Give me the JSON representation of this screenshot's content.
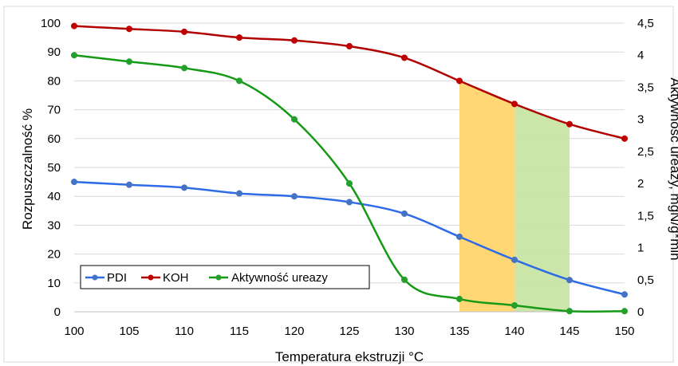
{
  "chart_data": {
    "type": "line",
    "xlabel": "Temperatura ekstruzji °C",
    "ylabel": "Rozpuszczalność %",
    "y2label": "Aktywność ureazy, mgN/g*min",
    "x": [
      100,
      105,
      110,
      115,
      120,
      125,
      130,
      135,
      140,
      145,
      150
    ],
    "x_tick_labels": [
      "100",
      "105",
      "110",
      "115",
      "120",
      "125",
      "130",
      "135",
      "140",
      "145",
      "150"
    ],
    "ylim": [
      0,
      100
    ],
    "y_tick_labels": [
      "0",
      "10",
      "20",
      "30",
      "40",
      "50",
      "60",
      "70",
      "80",
      "90",
      "100"
    ],
    "y2lim": [
      0,
      4.5
    ],
    "y2_tick_labels": [
      "0",
      "0,5",
      "1",
      "1,5",
      "2",
      "2,5",
      "3",
      "3,5",
      "4",
      "4,5"
    ],
    "grid": true,
    "legend": "bottom-left",
    "series": [
      {
        "name": "PDI",
        "axis": "left",
        "color": "#4472C4",
        "line_color": "#2E6BE6",
        "values": [
          45,
          44,
          43,
          41,
          40,
          38,
          34,
          26,
          18,
          11,
          6
        ]
      },
      {
        "name": "KOH",
        "axis": "left",
        "color": "#C00000",
        "line_color": "#B00000",
        "values": [
          99,
          98,
          97,
          95,
          94,
          92,
          88,
          80,
          72,
          65,
          60
        ]
      },
      {
        "name": "Aktywność ureazy",
        "axis": "right",
        "color": "#22A02A",
        "line_color": "#149A14",
        "values": [
          4.0,
          3.9,
          3.8,
          3.6,
          3.0,
          2.0,
          0.5,
          0.2,
          0.1,
          0.01,
          0.01
        ]
      }
    ],
    "shaded_regions": [
      {
        "x_range": [
          135,
          140
        ],
        "color": "#FFD466",
        "top_series": "KOH"
      },
      {
        "x_range": [
          140,
          145
        ],
        "color": "#C6E2A0",
        "top_series": "KOH"
      }
    ]
  }
}
